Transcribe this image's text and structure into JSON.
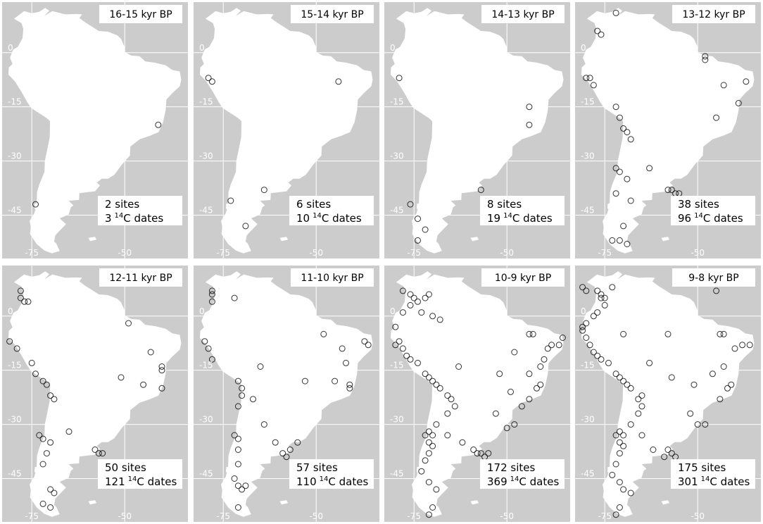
{
  "map": {
    "axes": {
      "lon_ticks": [
        {
          "value": -75,
          "label": "-75"
        },
        {
          "value": -50,
          "label": "-50"
        }
      ],
      "lat_ticks": [
        {
          "value": 0,
          "label": "0"
        },
        {
          "value": -15,
          "label": "-15"
        },
        {
          "value": -30,
          "label": "-30"
        },
        {
          "value": -45,
          "label": "-45"
        }
      ],
      "lon_range": [
        -83,
        -33
      ],
      "lat_range": [
        -57,
        14
      ]
    },
    "colors": {
      "ocean": "#cccccc",
      "land": "#ffffff",
      "marker": "#000000",
      "gridline": "#ffffff"
    },
    "marker": "open-circle",
    "panels": [
      {
        "title": "16-15 kyr BP",
        "sites_label": "2 sites",
        "dates_count": "3",
        "dates_label": "C dates",
        "sites": [
          [
            -41,
            -20
          ],
          [
            -74,
            -42
          ]
        ]
      },
      {
        "title": "15-14 kyr BP",
        "sites_label": "6 sites",
        "dates_count": "10",
        "dates_label": "C dates",
        "sites": [
          [
            -79,
            -7
          ],
          [
            -78,
            -8
          ],
          [
            -44,
            -8
          ],
          [
            -64,
            -38
          ],
          [
            -73,
            -41
          ],
          [
            -69,
            -48
          ]
        ]
      },
      {
        "title": "14-13 kyr BP",
        "sites_label": "8 sites",
        "dates_count": "19",
        "dates_label": "C dates",
        "sites": [
          [
            -79,
            -7
          ],
          [
            -44,
            -15
          ],
          [
            -44,
            -20
          ],
          [
            -57,
            -38
          ],
          [
            -76,
            -42
          ],
          [
            -74,
            -46
          ],
          [
            -72,
            -49
          ],
          [
            -74,
            -52
          ]
        ]
      },
      {
        "title": "13-12 kyr BP",
        "sites_label": "38 sites",
        "dates_count": "96",
        "dates_label": "C dates",
        "sites": [
          [
            -77,
            6
          ],
          [
            -76,
            5
          ],
          [
            -72,
            11
          ],
          [
            -79,
            -7
          ],
          [
            -80,
            -7
          ],
          [
            -78,
            -9
          ],
          [
            -72,
            -15
          ],
          [
            -71,
            -18
          ],
          [
            -70,
            -21
          ],
          [
            -69,
            -22
          ],
          [
            -68,
            -24
          ],
          [
            -72,
            -32
          ],
          [
            -71,
            -33
          ],
          [
            -69,
            -35
          ],
          [
            -68,
            -41
          ],
          [
            -72,
            -39
          ],
          [
            -70,
            -48
          ],
          [
            -71,
            -52
          ],
          [
            -73,
            -52
          ],
          [
            -69,
            -53
          ],
          [
            -63,
            -32
          ],
          [
            -58,
            -38
          ],
          [
            -57,
            -38
          ],
          [
            -56,
            -39
          ],
          [
            -55,
            -39
          ],
          [
            -48,
            -1
          ],
          [
            -48,
            -2
          ],
          [
            -43,
            -9
          ],
          [
            -37,
            -8
          ],
          [
            -39,
            -14
          ],
          [
            -45,
            -18
          ]
        ]
      },
      {
        "title": "12-11 kyr BP",
        "sites_label": "50 sites",
        "dates_count": "121",
        "dates_label": "C dates",
        "sites": [
          [
            -78,
            7
          ],
          [
            -78,
            5
          ],
          [
            -77,
            4
          ],
          [
            -76,
            4
          ],
          [
            -81,
            -7
          ],
          [
            -79,
            -9
          ],
          [
            -75,
            -13
          ],
          [
            -74,
            -16
          ],
          [
            -72,
            -18
          ],
          [
            -71,
            -19
          ],
          [
            -70,
            -22
          ],
          [
            -69,
            -23
          ],
          [
            -73,
            -33
          ],
          [
            -72,
            -34
          ],
          [
            -70,
            -35
          ],
          [
            -71,
            -38
          ],
          [
            -72,
            -41
          ],
          [
            -70,
            -48
          ],
          [
            -69,
            -49
          ],
          [
            -72,
            -52
          ],
          [
            -70,
            -53
          ],
          [
            -65,
            -32
          ],
          [
            -58,
            -37
          ],
          [
            -57,
            -38
          ],
          [
            -56,
            -38
          ],
          [
            -49,
            -2
          ],
          [
            -43,
            -10
          ],
          [
            -40,
            -14
          ],
          [
            -40,
            -15
          ],
          [
            -40,
            -20
          ],
          [
            -51,
            -17
          ],
          [
            -45,
            -19
          ]
        ]
      },
      {
        "title": "11-10 kyr BP",
        "sites_label": "57 sites",
        "dates_count": "110",
        "dates_label": "C dates",
        "sites": [
          [
            -78,
            7
          ],
          [
            -78,
            6
          ],
          [
            -78,
            4
          ],
          [
            -72,
            5
          ],
          [
            -80,
            -7
          ],
          [
            -79,
            -9
          ],
          [
            -78,
            -12
          ],
          [
            -71,
            -18
          ],
          [
            -70,
            -20
          ],
          [
            -70,
            -22
          ],
          [
            -71,
            -25
          ],
          [
            -67,
            -23
          ],
          [
            -72,
            -33
          ],
          [
            -71,
            -34
          ],
          [
            -71,
            -37
          ],
          [
            -71,
            -41
          ],
          [
            -72,
            -45
          ],
          [
            -71,
            -47
          ],
          [
            -69,
            -47
          ],
          [
            -70,
            -48
          ],
          [
            -71,
            -53
          ],
          [
            -64,
            -30
          ],
          [
            -61,
            -35
          ],
          [
            -59,
            -38
          ],
          [
            -58,
            -39
          ],
          [
            -57,
            -37
          ],
          [
            -55,
            -35
          ],
          [
            -48,
            -5
          ],
          [
            -43,
            -9
          ],
          [
            -37,
            -7
          ],
          [
            -36,
            -8
          ],
          [
            -42,
            -13
          ],
          [
            -45,
            -18
          ],
          [
            -41,
            -19
          ],
          [
            -41,
            -20
          ],
          [
            -53,
            -18
          ],
          [
            -65,
            -14
          ]
        ]
      },
      {
        "title": "10-9 kyr BP",
        "sites_label": "172 sites",
        "dates_count": "369",
        "dates_label": "C dates",
        "sites": [
          [
            -78,
            7
          ],
          [
            -76,
            6
          ],
          [
            -75,
            5
          ],
          [
            -74,
            4
          ],
          [
            -72,
            5
          ],
          [
            -71,
            6
          ],
          [
            -76,
            3
          ],
          [
            -78,
            1
          ],
          [
            -80,
            -3
          ],
          [
            -79,
            -7
          ],
          [
            -80,
            -8
          ],
          [
            -78,
            -9
          ],
          [
            -77,
            -11
          ],
          [
            -76,
            -12
          ],
          [
            -74,
            -13
          ],
          [
            -72,
            -16
          ],
          [
            -71,
            -17
          ],
          [
            -70,
            -18
          ],
          [
            -69,
            -19
          ],
          [
            -68,
            -20
          ],
          [
            -66,
            -22
          ],
          [
            -65,
            -23
          ],
          [
            -64,
            -25
          ],
          [
            -66,
            -27
          ],
          [
            -69,
            -30
          ],
          [
            -71,
            -32
          ],
          [
            -72,
            -33
          ],
          [
            -70,
            -33
          ],
          [
            -71,
            -35
          ],
          [
            -70,
            -36
          ],
          [
            -71,
            -38
          ],
          [
            -72,
            -40
          ],
          [
            -73,
            -43
          ],
          [
            -71,
            -46
          ],
          [
            -69,
            -48
          ],
          [
            -70,
            -53
          ],
          [
            -71,
            -55
          ],
          [
            -66,
            -33
          ],
          [
            -62,
            -35
          ],
          [
            -59,
            -37
          ],
          [
            -58,
            -38
          ],
          [
            -57,
            -38
          ],
          [
            -56,
            -39
          ],
          [
            -55,
            -38
          ],
          [
            -53,
            -27
          ],
          [
            -50,
            -31
          ],
          [
            -48,
            -30
          ],
          [
            -46,
            -25
          ],
          [
            -44,
            -23
          ],
          [
            -42,
            -20
          ],
          [
            -41,
            -19
          ],
          [
            -44,
            -16
          ],
          [
            -41,
            -14
          ],
          [
            -40,
            -12
          ],
          [
            -39,
            -9
          ],
          [
            -38,
            -8
          ],
          [
            -36,
            -8
          ],
          [
            -43,
            -5
          ],
          [
            -44,
            -5
          ],
          [
            -35,
            -6
          ],
          [
            -52,
            -16
          ],
          [
            -49,
            -21
          ],
          [
            -48,
            -10
          ],
          [
            -63,
            -14
          ],
          [
            -68,
            -1
          ],
          [
            -73,
            1
          ],
          [
            -70,
            0
          ]
        ]
      },
      {
        "title": "9-8 kyr BP",
        "sites_label": "175 sites",
        "dates_count": "301",
        "dates_label": "C dates",
        "sites": [
          [
            -81,
            8
          ],
          [
            -80,
            7
          ],
          [
            -77,
            7
          ],
          [
            -76,
            6
          ],
          [
            -76,
            5
          ],
          [
            -75,
            5
          ],
          [
            -73,
            8
          ],
          [
            -45,
            7
          ],
          [
            -75,
            3
          ],
          [
            -77,
            1
          ],
          [
            -78,
            0
          ],
          [
            -80,
            -2
          ],
          [
            -81,
            -3
          ],
          [
            -81,
            -4
          ],
          [
            -80,
            -6
          ],
          [
            -79,
            -8
          ],
          [
            -78,
            -10
          ],
          [
            -77,
            -11
          ],
          [
            -76,
            -12
          ],
          [
            -74,
            -13
          ],
          [
            -72,
            -16
          ],
          [
            -71,
            -17
          ],
          [
            -70,
            -18
          ],
          [
            -69,
            -19
          ],
          [
            -68,
            -20
          ],
          [
            -66,
            -23
          ],
          [
            -65,
            -25
          ],
          [
            -66,
            -27
          ],
          [
            -68,
            -30
          ],
          [
            -71,
            -32
          ],
          [
            -72,
            -33
          ],
          [
            -70,
            -33
          ],
          [
            -71,
            -35
          ],
          [
            -70,
            -36
          ],
          [
            -71,
            -38
          ],
          [
            -72,
            -41
          ],
          [
            -73,
            -44
          ],
          [
            -71,
            -46
          ],
          [
            -70,
            -48
          ],
          [
            -68,
            -49
          ],
          [
            -71,
            -53
          ],
          [
            -72,
            -55
          ],
          [
            -65,
            -33
          ],
          [
            -62,
            -37
          ],
          [
            -58,
            -37
          ],
          [
            -57,
            -38
          ],
          [
            -56,
            -39
          ],
          [
            -59,
            -39
          ],
          [
            -52,
            -27
          ],
          [
            -50,
            -30
          ],
          [
            -48,
            -30
          ],
          [
            -44,
            -23
          ],
          [
            -42,
            -20
          ],
          [
            -41,
            -19
          ],
          [
            -43,
            -14
          ],
          [
            -40,
            -9
          ],
          [
            -38,
            -8
          ],
          [
            -36,
            -8
          ],
          [
            -43,
            -5
          ],
          [
            -44,
            -5
          ],
          [
            -51,
            -19
          ],
          [
            -57,
            -17
          ],
          [
            -63,
            -13
          ],
          [
            -65,
            -22
          ],
          [
            -70,
            -5
          ],
          [
            -58,
            -5
          ],
          [
            -46,
            -16
          ]
        ]
      }
    ]
  }
}
